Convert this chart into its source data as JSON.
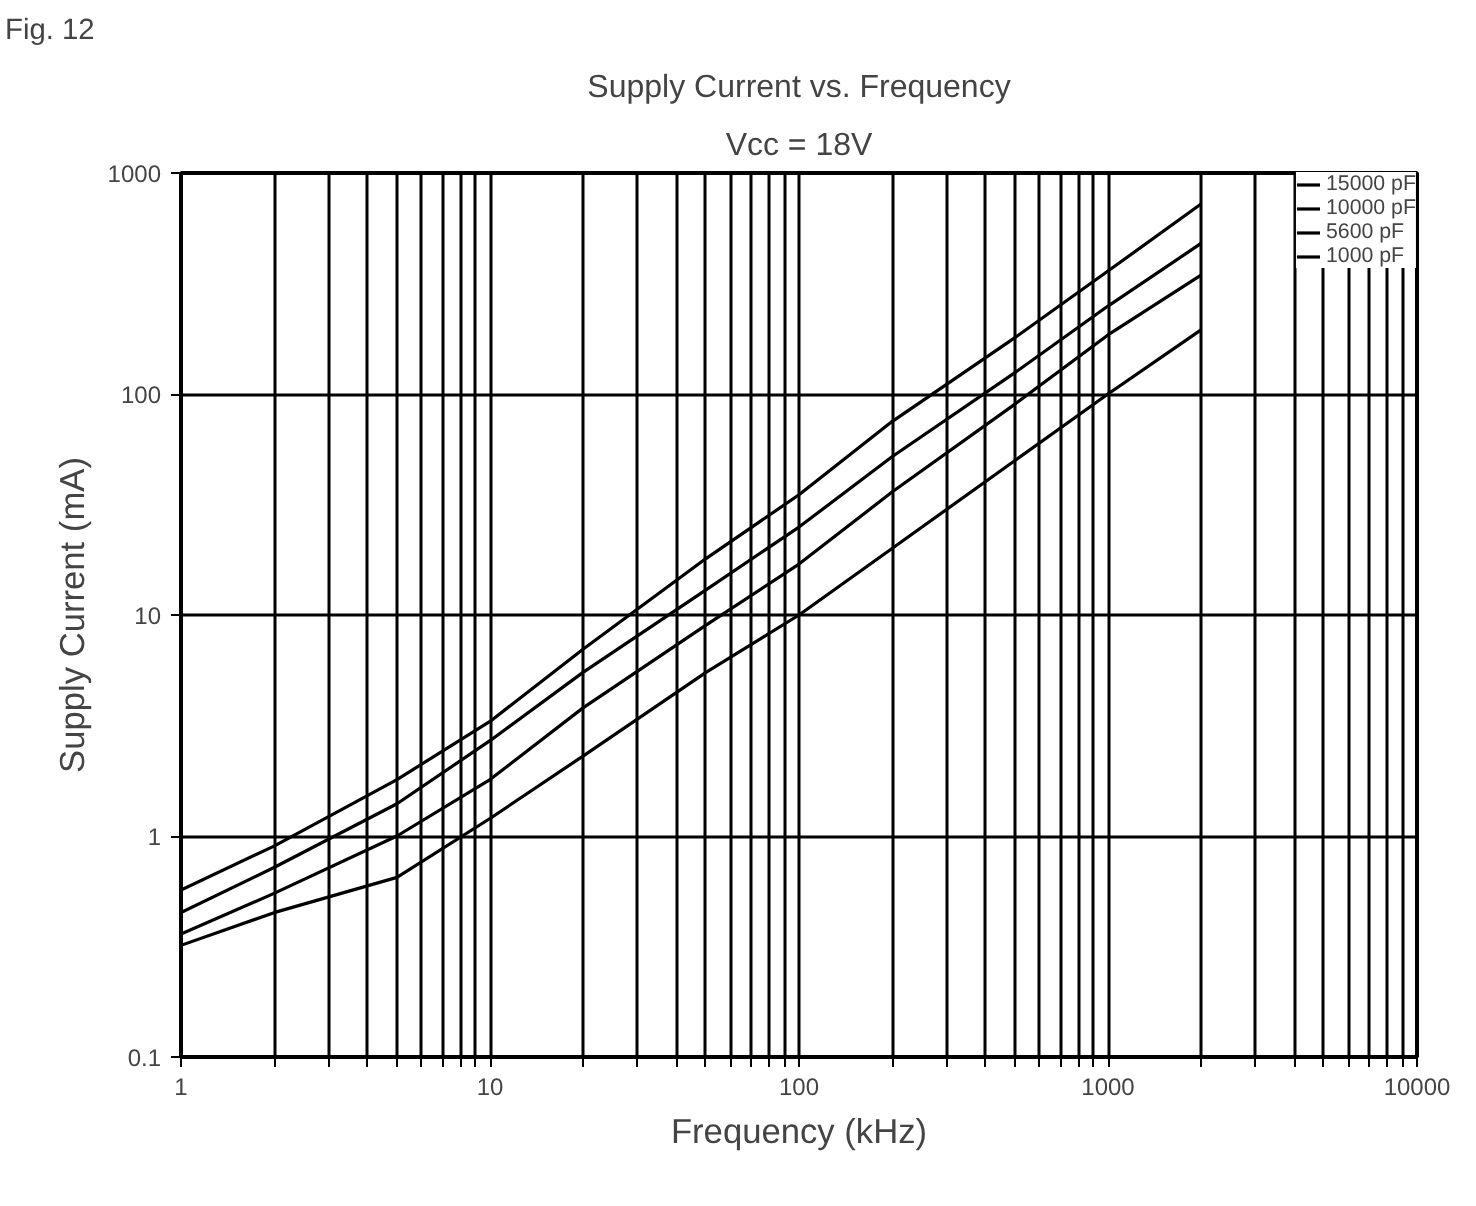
{
  "chart_data": {
    "type": "line",
    "title": "Supply Current vs. Frequency",
    "subtitle": "Vcc = 18V",
    "xlabel": "Frequency (kHz)",
    "ylabel": "Supply Current (mA)",
    "annotations": [
      "Fig. 12"
    ],
    "x": [
      1,
      2,
      5,
      10,
      20,
      50,
      100,
      200,
      500,
      1000,
      2000
    ],
    "series": [
      {
        "name": "15000 pF",
        "color": "#000000",
        "values": [
          0.57,
          0.9,
          1.8,
          3.3,
          7,
          18,
          35,
          75,
          180,
          360,
          724
        ]
      },
      {
        "name": "10000 pF",
        "color": "#000000",
        "values": [
          0.45,
          0.72,
          1.4,
          2.7,
          5.5,
          13,
          25,
          52,
          125,
          250,
          480
        ]
      },
      {
        "name": "5600 pF",
        "color": "#000000",
        "values": [
          0.36,
          0.55,
          1.0,
          1.8,
          3.8,
          9,
          17,
          36,
          90,
          185,
          345
        ]
      },
      {
        "name": "1000 pF",
        "color": "#000000",
        "values": [
          0.32,
          0.45,
          0.65,
          1.2,
          2.3,
          5.5,
          10,
          20,
          50,
          100,
          195
        ]
      }
    ],
    "log": "xy",
    "xlim": [
      1,
      10000
    ],
    "ylim": [
      0.1,
      1000
    ],
    "xticks": [
      1,
      {
        "value": 2,
        "label": null
      },
      {
        "value": 3,
        "label": null
      },
      {
        "value": 4,
        "label": null
      },
      {
        "value": 5,
        "label": null
      },
      {
        "value": 6,
        "label": null
      },
      {
        "value": 7,
        "label": null
      },
      {
        "value": 8,
        "label": null
      },
      {
        "value": 9,
        "label": null
      },
      10,
      {
        "value": 20,
        "label": null
      },
      {
        "value": 30,
        "label": null
      },
      {
        "value": 40,
        "label": null
      },
      {
        "value": 50,
        "label": null
      },
      {
        "value": 60,
        "label": null
      },
      {
        "value": 70,
        "label": null
      },
      {
        "value": 80,
        "label": null
      },
      {
        "value": 90,
        "label": null
      },
      100,
      {
        "value": 200,
        "label": null
      },
      {
        "value": 300,
        "label": null
      },
      {
        "value": 400,
        "label": null
      },
      {
        "value": 500,
        "label": null
      },
      {
        "value": 600,
        "label": null
      },
      {
        "value": 700,
        "label": null
      },
      {
        "value": 800,
        "label": null
      },
      {
        "value": 900,
        "label": null
      },
      1000,
      {
        "value": 2000,
        "label": null
      },
      {
        "value": 3000,
        "label": null
      },
      {
        "value": 4000,
        "label": null
      },
      {
        "value": 5000,
        "label": null
      },
      {
        "value": 6000,
        "label": null
      },
      {
        "value": 7000,
        "label": null
      },
      {
        "value": 8000,
        "label": null
      },
      {
        "value": 9000,
        "label": null
      },
      10000
    ],
    "yticks": [
      0.1,
      1,
      10,
      100,
      1000
    ],
    "grid": true,
    "legend": "top right",
    "marker": "none",
    "line_style": "solid"
  }
}
